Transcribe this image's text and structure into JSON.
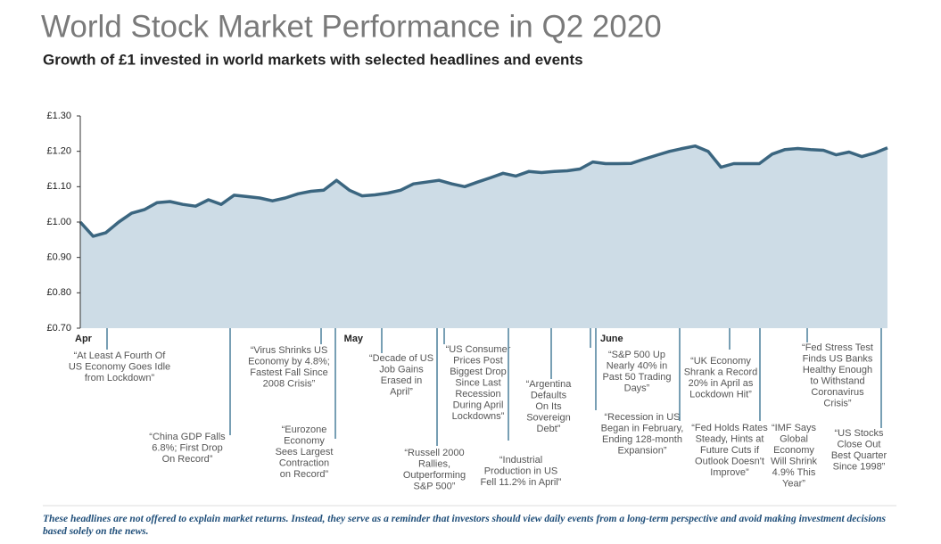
{
  "chart_data": {
    "type": "area",
    "title": "World Stock Market Performance in Q2 2020",
    "subtitle": "Growth of £1 invested in world markets with selected headlines and events",
    "categories": [
      "Apr",
      null,
      null,
      null,
      null,
      null,
      null,
      null,
      null,
      null,
      null,
      null,
      null,
      null,
      null,
      null,
      null,
      null,
      null,
      null,
      null,
      "May",
      null,
      null,
      null,
      null,
      null,
      null,
      null,
      null,
      null,
      null,
      null,
      null,
      null,
      null,
      null,
      null,
      null,
      null,
      null,
      "June",
      null,
      null,
      null,
      null,
      null,
      null,
      null,
      null,
      null,
      null,
      null,
      null,
      null,
      null,
      null,
      null,
      null,
      null,
      null,
      null,
      null,
      null
    ],
    "values": [
      1.0,
      0.96,
      0.97,
      1.0,
      1.025,
      1.035,
      1.055,
      1.058,
      1.05,
      1.045,
      1.063,
      1.05,
      1.076,
      1.072,
      1.068,
      1.06,
      1.068,
      1.08,
      1.087,
      1.09,
      1.118,
      1.09,
      1.074,
      1.077,
      1.082,
      1.09,
      1.108,
      1.113,
      1.118,
      1.108,
      1.1,
      1.113,
      1.125,
      1.138,
      1.13,
      1.143,
      1.14,
      1.143,
      1.145,
      1.15,
      1.17,
      1.165,
      1.165,
      1.166,
      1.178,
      1.189,
      1.2,
      1.208,
      1.215,
      1.2,
      1.155,
      1.165,
      1.165,
      1.165,
      1.192,
      1.205,
      1.208,
      1.205,
      1.203,
      1.19,
      1.198,
      1.185,
      1.195,
      1.21
    ],
    "color": "#3b6680",
    "fill_color": "#cddce6",
    "ylim": [
      0.7,
      1.3
    ],
    "yticks": [
      {
        "value": 0.7,
        "label": "£0.70"
      },
      {
        "value": 0.8,
        "label": "£0.80"
      },
      {
        "value": 0.9,
        "label": "£0.90"
      },
      {
        "value": 1.0,
        "label": "£1.00"
      },
      {
        "value": 1.1,
        "label": "£1.10"
      },
      {
        "value": 1.2,
        "label": "£1.20"
      },
      {
        "value": 1.3,
        "label": "£1.30"
      }
    ],
    "annotations": [
      {
        "lines": [
          "“At Least A Fourth Of",
          "US Economy Goes Idle",
          "from Lockdown”"
        ]
      },
      {
        "lines": [
          "“China GDP Falls",
          "6.8%; First Drop",
          "On Record”"
        ]
      },
      {
        "lines": [
          "“Virus Shrinks US",
          "Economy by 4.8%;",
          "Fastest Fall Since",
          "2008 Crisis”"
        ]
      },
      {
        "lines": [
          "“Eurozone",
          "Economy",
          "Sees Largest",
          "Contraction",
          "on Record”"
        ]
      },
      {
        "lines": [
          "“Decade of US",
          "Job Gains",
          "Erased in",
          "April”"
        ]
      },
      {
        "lines": [
          "“Russell 2000",
          "Rallies,",
          "Outperforming",
          "S&P 500”"
        ]
      },
      {
        "lines": [
          "“US Consumer",
          "Prices Post",
          "Biggest Drop",
          "Since Last",
          "Recession",
          "During April",
          "Lockdowns”"
        ]
      },
      {
        "lines": [
          "“Industrial",
          "Production in US",
          "Fell 11.2% in April”"
        ]
      },
      {
        "lines": [
          "“Argentina",
          "Defaults",
          "On Its",
          "Sovereign",
          "Debt”"
        ]
      },
      {
        "lines": [
          "“S&P 500 Up",
          "Nearly 40% in",
          "Past 50 Trading",
          "Days”"
        ]
      },
      {
        "lines": [
          "“Recession in US",
          "Began in February,",
          "Ending 128-month",
          "Expansion”"
        ]
      },
      {
        "lines": [
          "“UK Economy",
          "Shrank a Record",
          "20% in April as",
          "Lockdown Hit”"
        ]
      },
      {
        "lines": [
          "“Fed Holds Rates",
          "Steady, Hints at",
          "Future Cuts if",
          "Outlook Doesn't",
          "Improve”"
        ]
      },
      {
        "lines": [
          "“IMF Says",
          "Global",
          "Economy",
          "Will Shrink",
          "4.9% This",
          "Year”"
        ]
      },
      {
        "lines": [
          "“Fed Stress Test",
          "Finds US Banks",
          "Healthy Enough",
          "to Withstand",
          "Coronavirus",
          "Crisis”"
        ]
      },
      {
        "lines": [
          "“US Stocks",
          "Close Out",
          "Best Quarter",
          "Since 1998”"
        ]
      }
    ],
    "note": "These headlines are not offered to explain market returns. Instead, they serve as a reminder that investors should view daily events from a long-term perspective and avoid making investment decisions based solely on the news."
  }
}
